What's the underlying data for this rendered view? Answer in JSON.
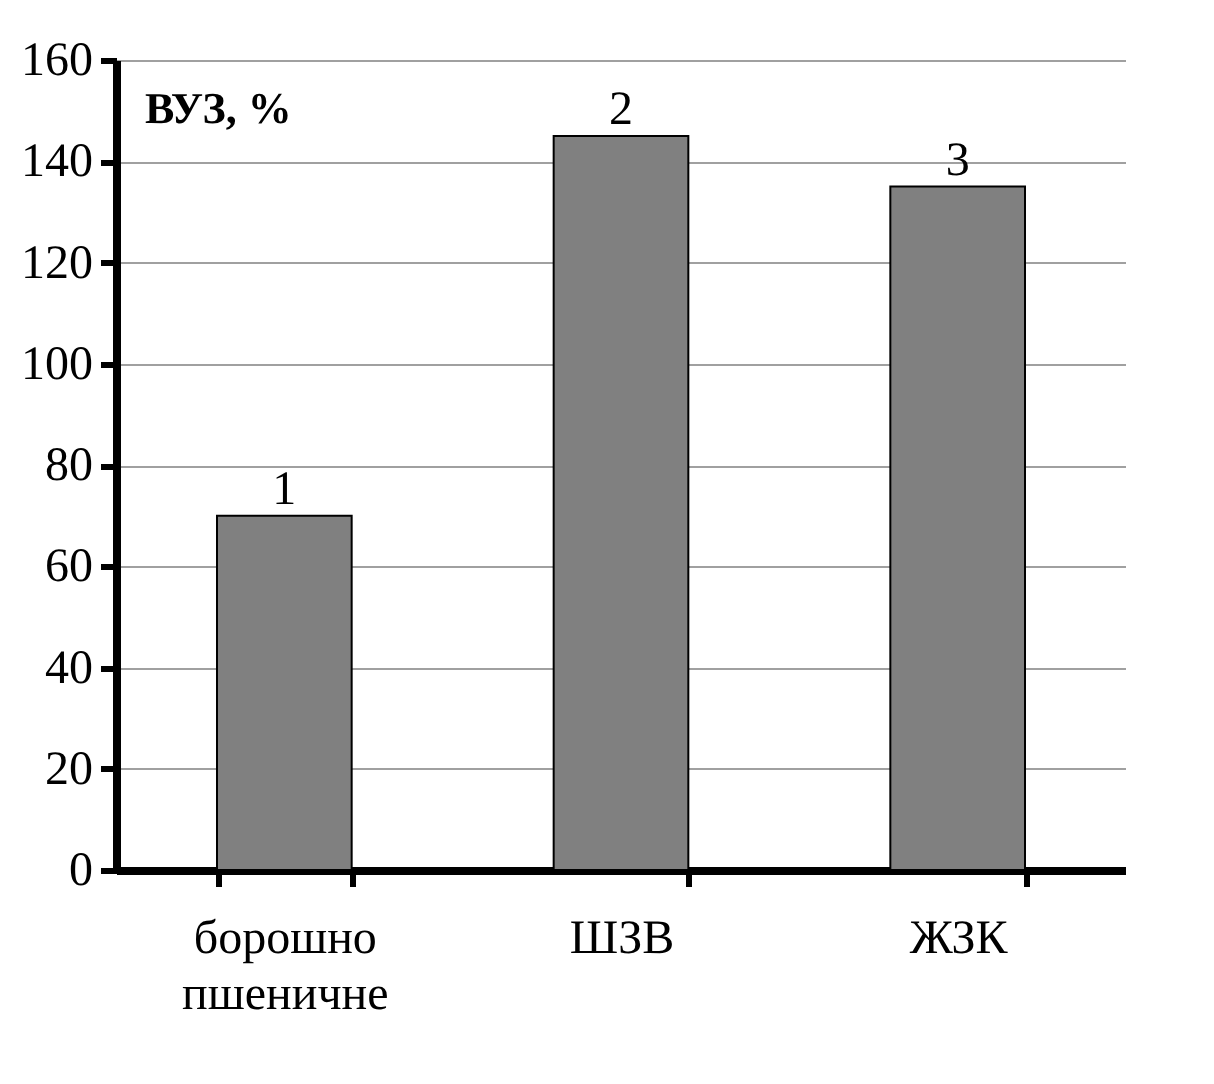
{
  "chart_data": {
    "type": "bar",
    "ylabel": "ВУЗ, %",
    "categories": [
      "борошно пшеничне",
      "ШЗВ",
      "ЖЗК"
    ],
    "values": [
      70,
      145,
      135
    ],
    "color": "#808080",
    "annotations": [
      {
        "text": "1",
        "x": "борошно пшеничне",
        "y": 70
      },
      {
        "text": "2",
        "x": "ШЗВ",
        "y": 145
      },
      {
        "text": "3",
        "x": "ЖЗК",
        "y": 135
      }
    ],
    "ylim": [
      0,
      160
    ],
    "yticks": [
      0,
      20,
      40,
      60,
      80,
      100,
      120,
      140,
      160
    ],
    "grid": "y"
  }
}
